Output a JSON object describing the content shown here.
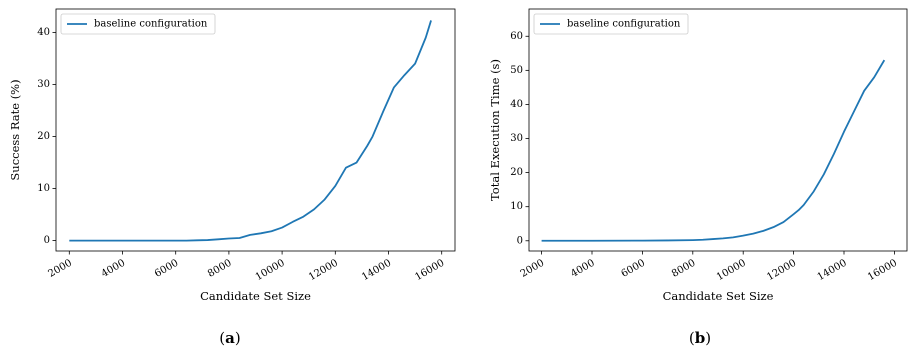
{
  "chart_data": [
    {
      "type": "line",
      "panel_label": "(a)",
      "xlabel": "Candidate Set Size",
      "ylabel": "Success Rate (%)",
      "xlim": [
        1500,
        16500
      ],
      "ylim": [
        -2,
        44.5
      ],
      "xticks": [
        2000,
        4000,
        6000,
        8000,
        10000,
        12000,
        14000,
        16000
      ],
      "yticks": [
        0,
        10,
        20,
        30,
        40
      ],
      "legend_position": "upper-left",
      "series": [
        {
          "name": "baseline configuration",
          "color": "#1f77b4",
          "x": [
            2000,
            4000,
            6000,
            6400,
            6800,
            7200,
            7600,
            8000,
            8400,
            8800,
            9200,
            9600,
            10000,
            10400,
            10800,
            11200,
            11600,
            12000,
            12400,
            12800,
            13200,
            13400,
            13800,
            14200,
            14600,
            15000,
            15400,
            15600
          ],
          "y": [
            0,
            0,
            0,
            0,
            0.05,
            0.1,
            0.25,
            0.4,
            0.5,
            1.1,
            1.4,
            1.8,
            2.5,
            3.6,
            4.6,
            6.0,
            7.9,
            10.5,
            14.0,
            15.0,
            18.2,
            20.0,
            24.8,
            29.4,
            31.8,
            34.0,
            39.0,
            42.3
          ]
        }
      ]
    },
    {
      "type": "line",
      "panel_label": "(b)",
      "xlabel": "Candidate Set Size",
      "ylabel": "Total Execution Time (s)",
      "xlim": [
        1500,
        16500
      ],
      "ylim": [
        -3,
        68
      ],
      "xticks": [
        2000,
        4000,
        6000,
        8000,
        10000,
        12000,
        14000,
        16000
      ],
      "yticks": [
        0,
        10,
        20,
        30,
        40,
        50,
        60
      ],
      "legend_position": "upper-left",
      "series": [
        {
          "name": "baseline configuration",
          "color": "#1f77b4",
          "x": [
            2000,
            4000,
            6000,
            7000,
            8000,
            8400,
            8800,
            9200,
            9600,
            10000,
            10400,
            10800,
            11200,
            11600,
            12000,
            12200,
            12400,
            12800,
            13200,
            13600,
            14000,
            14400,
            14800,
            15200,
            15600
          ],
          "y": [
            0,
            0,
            0.05,
            0.1,
            0.2,
            0.3,
            0.5,
            0.7,
            1.0,
            1.5,
            2.1,
            2.9,
            4.0,
            5.5,
            7.8,
            9.0,
            10.5,
            14.5,
            19.5,
            25.5,
            32.0,
            38.0,
            44.0,
            48.0,
            53.0
          ]
        }
      ]
    }
  ]
}
